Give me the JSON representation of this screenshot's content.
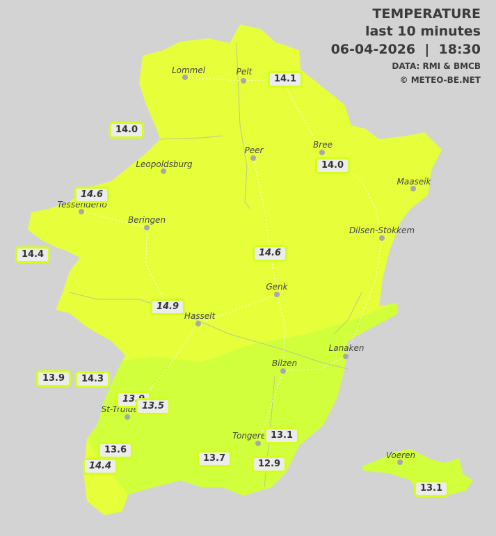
{
  "header": {
    "title": "TEMPERATURE",
    "subtitle": "last 10 minutes",
    "datetime": "06-04-2026  |  18:30",
    "source": "DATA: RMI & BMCB",
    "copyright": "© METEO-BE.NET"
  },
  "colors": {
    "background": "#d3d3d3",
    "warm_zone": "#e6ff3a",
    "cool_zone": "#d2ff3c",
    "label_border": "#d4ff1a"
  },
  "cities": [
    {
      "name": "Lommel"
    },
    {
      "name": "Pelt"
    },
    {
      "name": "Peer"
    },
    {
      "name": "Bree"
    },
    {
      "name": "Leopoldsburg"
    },
    {
      "name": "Maaseik"
    },
    {
      "name": "Tessenderlo"
    },
    {
      "name": "Beringen"
    },
    {
      "name": "Dilsen-Stokkem"
    },
    {
      "name": "Genk"
    },
    {
      "name": "Hasselt"
    },
    {
      "name": "Lanaken"
    },
    {
      "name": "Bilzen"
    },
    {
      "name": "St-Truiden"
    },
    {
      "name": "Tongeren"
    },
    {
      "name": "Voeren"
    }
  ],
  "readings": [
    {
      "value": "14.1",
      "italic": false
    },
    {
      "value": "14.0",
      "italic": false
    },
    {
      "value": "14.0",
      "italic": false
    },
    {
      "value": "14.6",
      "italic": true
    },
    {
      "value": "14.4",
      "italic": false
    },
    {
      "value": "14.6",
      "italic": true
    },
    {
      "value": "14.9",
      "italic": true
    },
    {
      "value": "13.9",
      "italic": false
    },
    {
      "value": "14.3",
      "italic": false
    },
    {
      "value": "13.9",
      "italic": true
    },
    {
      "value": "13.5",
      "italic": true
    },
    {
      "value": "13.6",
      "italic": false
    },
    {
      "value": "14.4",
      "italic": true
    },
    {
      "value": "13.1",
      "italic": false
    },
    {
      "value": "13.7",
      "italic": false
    },
    {
      "value": "12.9",
      "italic": false
    },
    {
      "value": "13.1",
      "italic": false
    }
  ]
}
